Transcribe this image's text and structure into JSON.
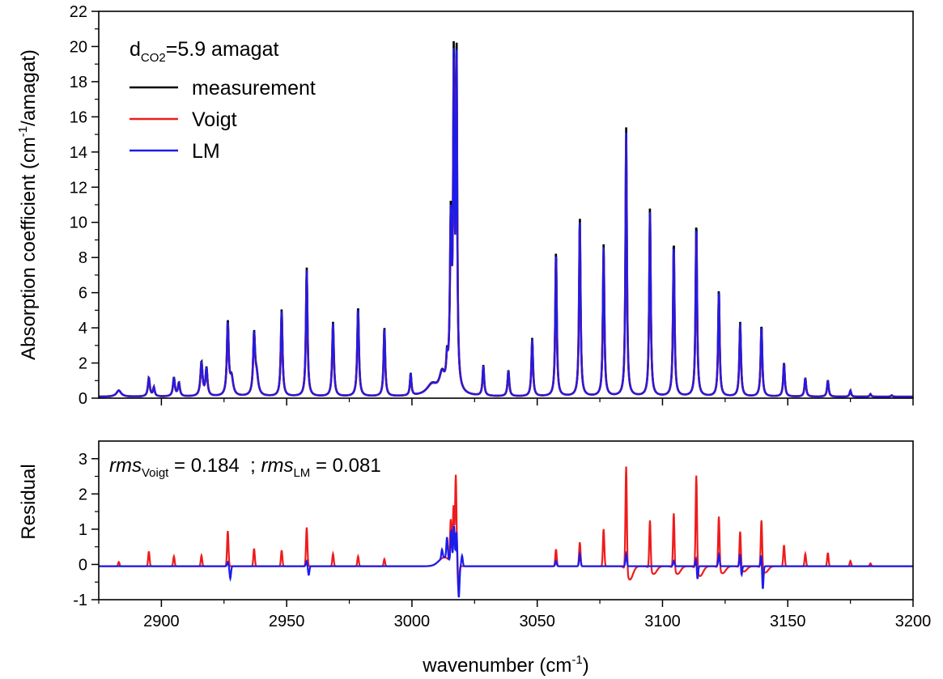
{
  "colors": {
    "measurement": "#000000",
    "voigt": "#ee1c1c",
    "lm": "#1c1ceb",
    "axis": "#000000",
    "background": "#ffffff"
  },
  "chart_data": [
    {
      "type": "line",
      "panel": "top",
      "xlabel": "",
      "ylabel": {
        "prefix": "Absorption coefficient (cm",
        "sup": "-1",
        "suffix": "/amagat)"
      },
      "xlim": [
        2875,
        3200
      ],
      "ylim": [
        0,
        22
      ],
      "yticks": [
        0,
        2,
        4,
        6,
        8,
        10,
        12,
        14,
        16,
        18,
        20,
        22
      ],
      "annotation": {
        "d": "d",
        "sub": "CO2",
        "rest": "=5.9 amagat"
      },
      "legend": {
        "placement": "top-left",
        "entries": [
          "measurement",
          "Voigt",
          "LM"
        ]
      },
      "baseline": 0.08,
      "peaks": [
        [
          2883,
          0.35,
          2.2
        ],
        [
          2895,
          1.05,
          0.9
        ],
        [
          2897,
          0.5,
          0.8
        ],
        [
          2905,
          1.05,
          0.9
        ],
        [
          2907,
          0.75,
          0.9
        ],
        [
          2916,
          1.9,
          1.0
        ],
        [
          2918,
          1.55,
          0.9
        ],
        [
          2926.5,
          4.1,
          0.85
        ],
        [
          2928,
          1.0,
          1.5
        ],
        [
          2937,
          3.3,
          0.9
        ],
        [
          2938,
          1.1,
          1.5
        ],
        [
          2948,
          4.85,
          0.8
        ],
        [
          2958,
          7.2,
          0.75
        ],
        [
          2968.5,
          4.15,
          0.8
        ],
        [
          2978.5,
          5.0,
          0.8
        ],
        [
          2989,
          3.85,
          0.75
        ],
        [
          2999.5,
          1.25,
          0.7
        ],
        [
          3008,
          0.6,
          5.0
        ],
        [
          3012,
          1.0,
          2.5
        ],
        [
          3014,
          1.3,
          0.7
        ],
        [
          3015.5,
          8.5,
          0.75
        ],
        [
          3016.7,
          17.0,
          0.6
        ],
        [
          3017.8,
          18.5,
          0.6
        ],
        [
          3016,
          1.0,
          3.0
        ],
        [
          3028.5,
          1.7,
          0.75
        ],
        [
          3038.5,
          1.45,
          0.8
        ],
        [
          3048,
          3.25,
          0.75
        ],
        [
          3057.5,
          8.15,
          0.7
        ],
        [
          3067,
          10.05,
          0.7
        ],
        [
          3076.5,
          8.45,
          0.7
        ],
        [
          3085.5,
          15.0,
          0.65
        ],
        [
          3095,
          10.55,
          0.7
        ],
        [
          3104.5,
          8.7,
          0.7
        ],
        [
          3113.5,
          9.75,
          0.7
        ],
        [
          3122.5,
          6.0,
          0.7
        ],
        [
          3131,
          4.15,
          0.75
        ],
        [
          3139.5,
          4.0,
          0.75
        ],
        [
          3148.5,
          1.9,
          0.75
        ],
        [
          3157,
          1.05,
          0.75
        ],
        [
          3166,
          0.92,
          0.75
        ],
        [
          3175,
          0.35,
          0.7
        ],
        [
          3183,
          0.15,
          0.7
        ],
        [
          3191.5,
          0.08,
          0.7
        ]
      ],
      "series": [
        {
          "name": "measurement",
          "color": "#000000",
          "scale": 1.02,
          "width": 0.0
        },
        {
          "name": "Voigt",
          "color": "#ee1c1c",
          "scale": 0.97,
          "width": 0.02
        },
        {
          "name": "LM",
          "color": "#1c1ceb",
          "scale": 1.0,
          "width": 0.0
        }
      ]
    },
    {
      "type": "line",
      "panel": "bottom",
      "xlabel": {
        "prefix": "wavenumber (cm",
        "sup": "-1",
        "suffix": ")"
      },
      "ylabel": "Residual",
      "xlim": [
        2875,
        3200
      ],
      "ylim": [
        -1,
        3.5
      ],
      "xticks": [
        2900,
        2950,
        3000,
        3050,
        3100,
        3150,
        3200
      ],
      "yticks": [
        -1,
        0,
        1,
        2,
        3
      ],
      "annotation": {
        "rms1": "rms",
        "sub1": "Voigt",
        "val1": " = 0.184  ; ",
        "rms2": "rms",
        "sub2": "LM",
        "val2": " = 0.081"
      },
      "baseline": -0.05,
      "series": [
        {
          "name": "Voigt",
          "color": "#ee1c1c",
          "peaks": [
            [
              2883,
              0.12
            ],
            [
              2895,
              0.42
            ],
            [
              2905,
              0.28
            ],
            [
              2916,
              0.3
            ],
            [
              2926.5,
              1.0
            ],
            [
              2937,
              0.5
            ],
            [
              2948,
              0.45
            ],
            [
              2958,
              1.1
            ],
            [
              2968.5,
              0.35
            ],
            [
              2978.5,
              0.28
            ],
            [
              2989,
              0.2
            ],
            [
              3015.5,
              1.2
            ],
            [
              3016.6,
              1.65
            ],
            [
              3017.5,
              2.55
            ],
            [
              3018.6,
              -0.7
            ],
            [
              3057.5,
              0.48
            ],
            [
              3067,
              0.68
            ],
            [
              3076.5,
              1.05
            ],
            [
              3085.5,
              3.0
            ],
            [
              3095,
              1.4
            ],
            [
              3104.5,
              1.6
            ],
            [
              3113.5,
              2.7
            ],
            [
              3122.5,
              1.5
            ],
            [
              3131,
              1.05
            ],
            [
              3139.5,
              1.38
            ],
            [
              3148.5,
              0.6
            ],
            [
              3157,
              0.35
            ],
            [
              3166,
              0.38
            ],
            [
              3175,
              0.15
            ],
            [
              3183,
              0.08
            ]
          ],
          "dips": [
            [
              3087,
              -0.38
            ],
            [
              3096.5,
              -0.22
            ],
            [
              3106,
              -0.22
            ],
            [
              3115,
              -0.28
            ],
            [
              3124,
              -0.2
            ],
            [
              3132.5,
              -0.15
            ],
            [
              3141,
              -0.18
            ]
          ]
        },
        {
          "name": "LM",
          "color": "#1c1ceb",
          "peaks": [
            [
              2926.5,
              0.12
            ],
            [
              2927.5,
              -0.35
            ],
            [
              2958,
              0.15
            ],
            [
              2958.8,
              -0.25
            ],
            [
              3012,
              0.25
            ],
            [
              3014,
              0.6
            ],
            [
              3015.7,
              0.9
            ],
            [
              3016.8,
              1.1
            ],
            [
              3017.8,
              0.95
            ],
            [
              3018.7,
              -0.9
            ],
            [
              3020,
              0.3
            ],
            [
              3057.5,
              0.15
            ],
            [
              3067,
              0.35
            ],
            [
              3085.5,
              0.35
            ],
            [
              3104.5,
              0.15
            ],
            [
              3113.5,
              0.3
            ],
            [
              3113.9,
              -0.45
            ],
            [
              3122.5,
              0.32
            ],
            [
              3131,
              0.38
            ],
            [
              3131.5,
              -0.3
            ],
            [
              3139.5,
              0.4
            ],
            [
              3140,
              -0.72
            ]
          ]
        }
      ]
    }
  ]
}
